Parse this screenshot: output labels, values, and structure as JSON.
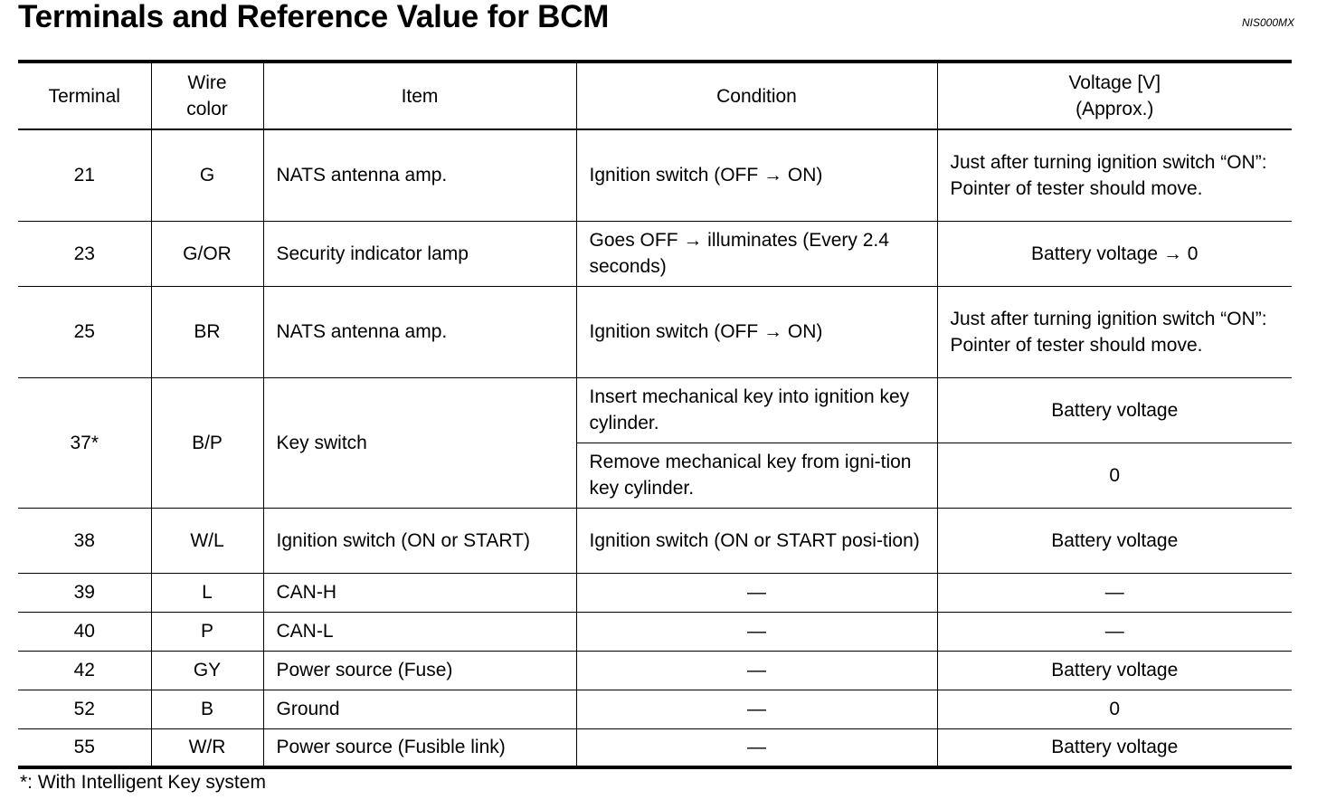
{
  "title": "Terminals and Reference Value for BCM",
  "doc_code": "NIS000MX",
  "table": {
    "headers": {
      "terminal": "Terminal",
      "wire_color": [
        "Wire",
        "color"
      ],
      "item": "Item",
      "condition": "Condition",
      "voltage": [
        "Voltage [V]",
        "(Approx.)"
      ]
    },
    "rows": [
      {
        "terminal": "21",
        "wire_color": "G",
        "item": "NATS antenna amp.",
        "condition": "Ignition switch (OFF → ON)",
        "voltage": "Just after turning ignition switch “ON”: Pointer of tester should move."
      },
      {
        "terminal": "23",
        "wire_color": "G/OR",
        "item": "Security indicator lamp",
        "condition": "Goes OFF → illuminates (Every 2.4 seconds)",
        "voltage": "Battery voltage → 0"
      },
      {
        "terminal": "25",
        "wire_color": "BR",
        "item": "NATS antenna amp.",
        "condition": "Ignition switch (OFF → ON)",
        "voltage": "Just after turning ignition switch “ON”: Pointer of tester should move."
      },
      {
        "terminal": "37*",
        "wire_color": "B/P",
        "item": "Key switch",
        "sub": [
          {
            "condition": "Insert mechanical key into ignition key cylinder.",
            "voltage": "Battery voltage"
          },
          {
            "condition": "Remove mechanical key from igni-tion key cylinder.",
            "voltage": "0"
          }
        ]
      },
      {
        "terminal": "38",
        "wire_color": "W/L",
        "item": "Ignition switch (ON or START)",
        "condition": "Ignition switch (ON or START posi-tion)",
        "voltage": "Battery voltage"
      },
      {
        "terminal": "39",
        "wire_color": "L",
        "item": "CAN-H",
        "condition": "—",
        "voltage": "—"
      },
      {
        "terminal": "40",
        "wire_color": "P",
        "item": "CAN-L",
        "condition": "—",
        "voltage": "—"
      },
      {
        "terminal": "42",
        "wire_color": "GY",
        "item": "Power source (Fuse)",
        "condition": "—",
        "voltage": "Battery voltage"
      },
      {
        "terminal": "52",
        "wire_color": "B",
        "item": "Ground",
        "condition": "—",
        "voltage": "0"
      },
      {
        "terminal": "55",
        "wire_color": "W/R",
        "item": "Power source (Fusible link)",
        "condition": "—",
        "voltage": "Battery voltage"
      }
    ]
  },
  "footnote": "*: With Intelligent Key system"
}
